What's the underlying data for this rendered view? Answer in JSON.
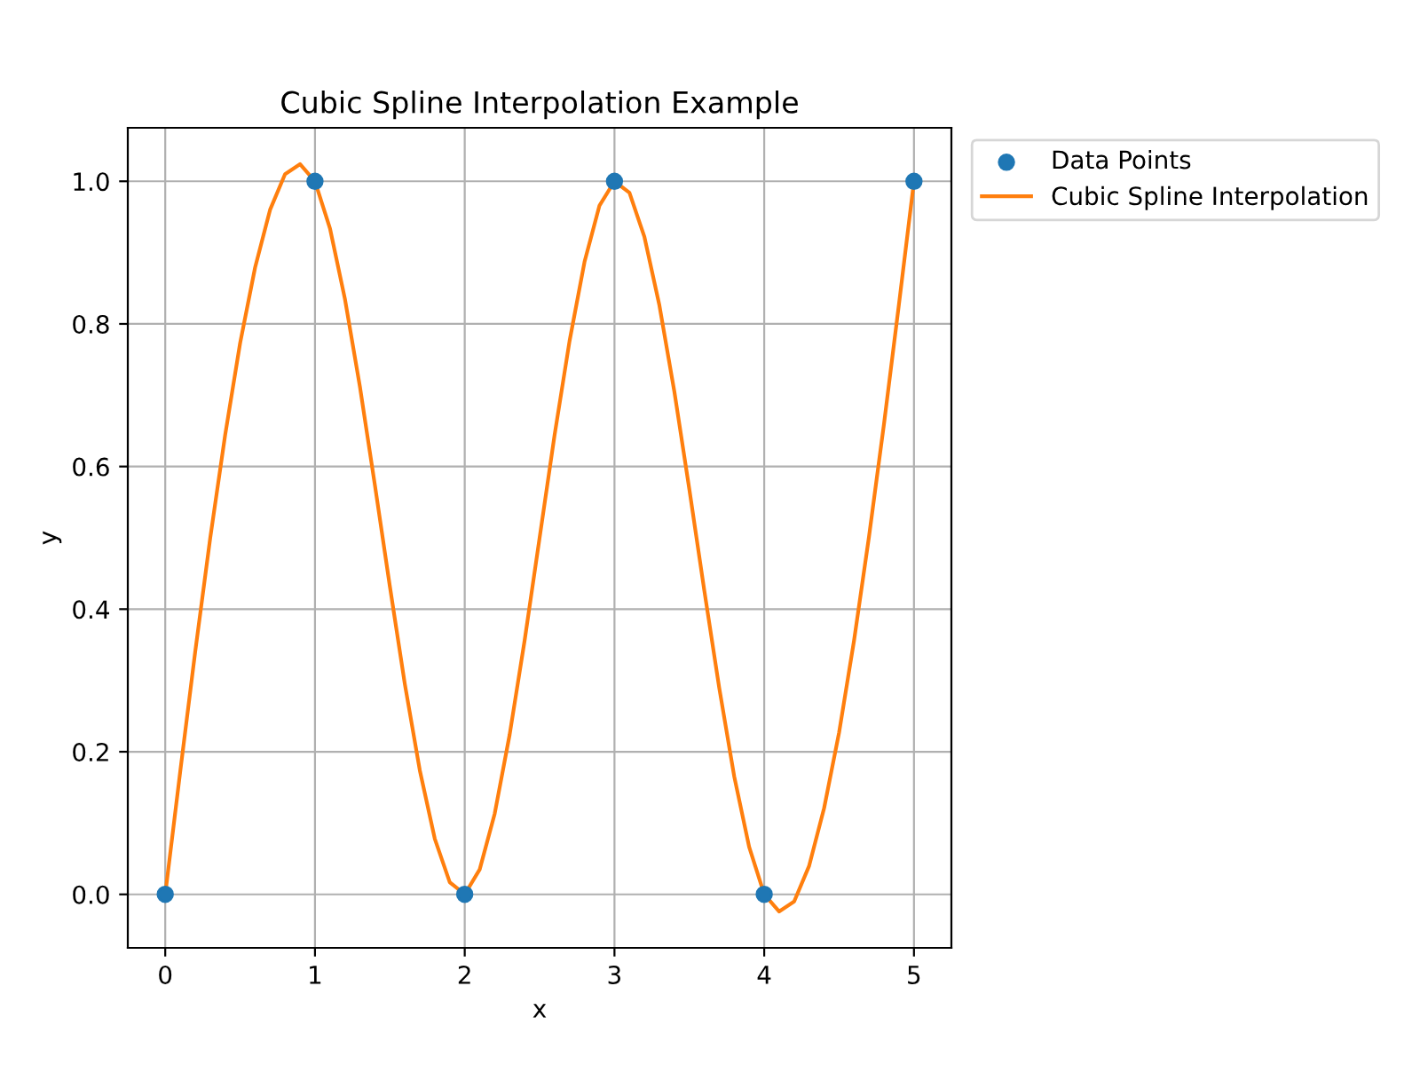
{
  "chart_data": {
    "type": "line",
    "title": "Cubic Spline Interpolation Example",
    "xlabel": "x",
    "ylabel": "y",
    "series": [
      {
        "name": "Data Points",
        "type": "scatter",
        "color": "#1f77b4",
        "marker": "circle",
        "x": [
          0,
          1,
          2,
          3,
          4,
          5
        ],
        "values": [
          0,
          1,
          0,
          1,
          0,
          1
        ]
      },
      {
        "name": "Cubic Spline Interpolation",
        "color": "#ff7f0e",
        "marker": "none",
        "line_style": "solid",
        "x": [
          0,
          0.1,
          0.2,
          0.3,
          0.4,
          0.5,
          0.6,
          0.7,
          0.8,
          0.9,
          1,
          1.1,
          1.2,
          1.3,
          1.4,
          1.5,
          1.6,
          1.7,
          1.8,
          1.9,
          2,
          2.1,
          2.2,
          2.3,
          2.4,
          2.5,
          2.6,
          2.7,
          2.8,
          2.9,
          3,
          3.1,
          3.2,
          3.3,
          3.4,
          3.5,
          3.6,
          3.7,
          3.8,
          3.9,
          4,
          4.1,
          4.2,
          4.3,
          4.4,
          4.5,
          4.6,
          4.7,
          4.8,
          4.9,
          5
        ],
        "values": [
          0,
          0.172,
          0.34,
          0.499,
          0.644,
          0.773,
          0.879,
          0.96,
          1.01,
          1.024,
          1,
          0.934,
          0.835,
          0.712,
          0.574,
          0.432,
          0.295,
          0.174,
          0.078,
          0.017,
          0,
          0.035,
          0.113,
          0.224,
          0.356,
          0.5,
          0.644,
          0.776,
          0.887,
          0.966,
          1,
          0.984,
          0.922,
          0.826,
          0.705,
          0.568,
          0.426,
          0.289,
          0.165,
          0.066,
          0,
          -0.024,
          -0.01,
          0.04,
          0.121,
          0.227,
          0.356,
          0.502,
          0.66,
          0.828,
          1
        ]
      }
    ],
    "xlim": [
      -0.25,
      5.25
    ],
    "ylim": [
      -0.075,
      1.075
    ],
    "xticks": [
      0,
      1,
      2,
      3,
      4,
      5
    ],
    "yticks": [
      {
        "value": 0,
        "label": "0.0"
      },
      {
        "value": 0.2,
        "label": "0.2"
      },
      {
        "value": 0.4,
        "label": "0.4"
      },
      {
        "value": 0.6,
        "label": "0.6"
      },
      {
        "value": 0.8,
        "label": "0.8"
      },
      {
        "value": 1,
        "label": "1.0"
      }
    ],
    "grid": true,
    "legend": "top right"
  }
}
